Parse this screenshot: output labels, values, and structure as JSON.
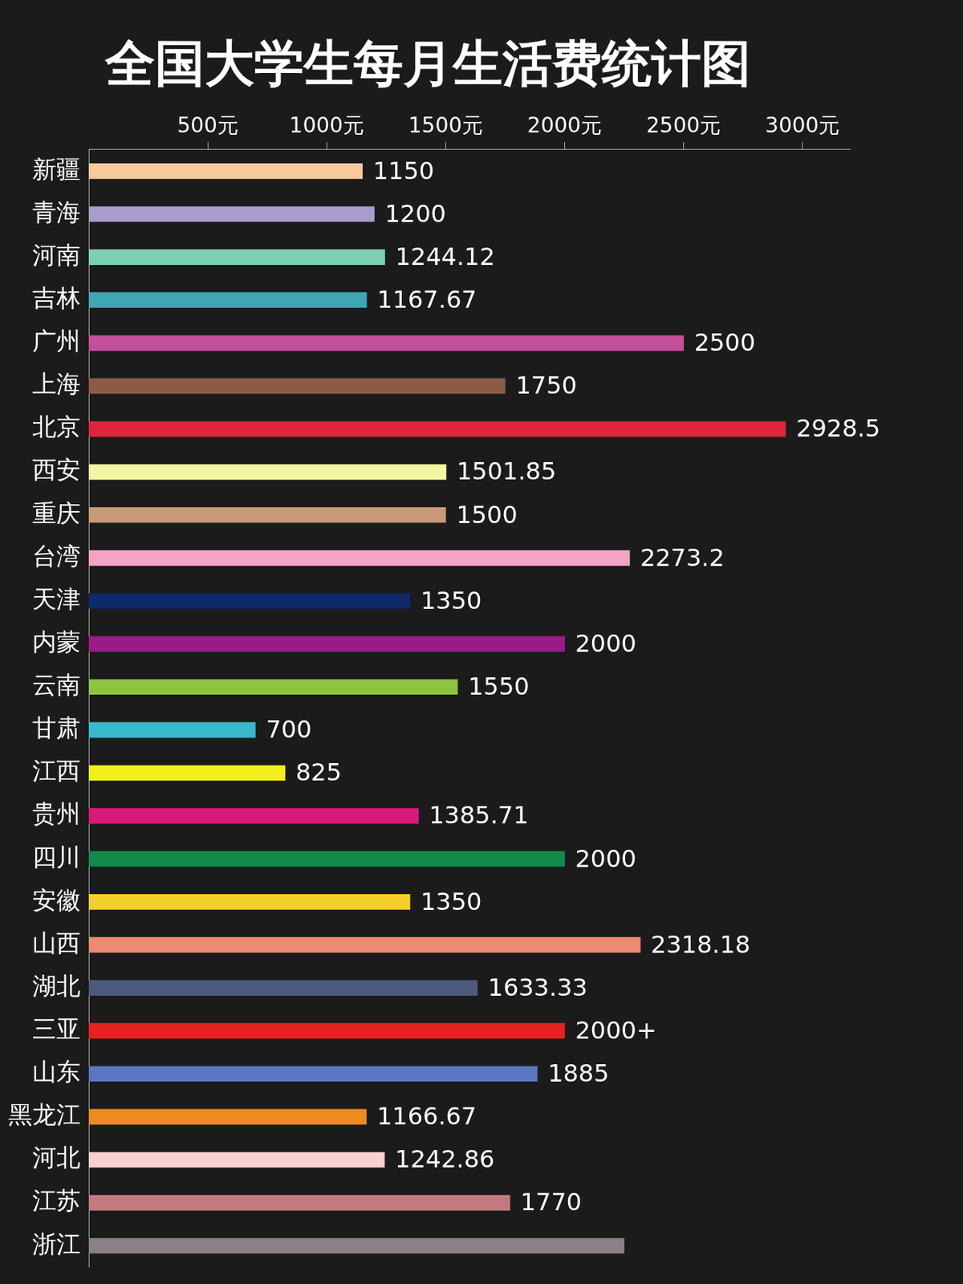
{
  "chart_data": {
    "type": "bar",
    "orientation": "horizontal",
    "title": "全国大学生每月生活费统计图",
    "categories": [
      "新疆",
      "青海",
      "河南",
      "吉林",
      "广州",
      "上海",
      "北京",
      "西安",
      "重庆",
      "台湾",
      "天津",
      "内蒙",
      "云南",
      "甘肃",
      "江西",
      "贵州",
      "四川",
      "安徽",
      "山西",
      "湖北",
      "三亚",
      "山东",
      "黑龙江",
      "河北",
      "江苏",
      "浙江"
    ],
    "values": [
      1150,
      1200,
      1244.12,
      1167.67,
      2500,
      1750,
      2928.5,
      1501.85,
      1500,
      2273.2,
      1350,
      2000,
      1550,
      700,
      825,
      1385.71,
      2000,
      1350,
      2318.18,
      1633.33,
      2000,
      1885,
      1166.67,
      1242.86,
      1770,
      2250
    ],
    "value_labels": [
      "1150",
      "1200",
      "1244.12",
      "1167.67",
      "2500",
      "1750",
      "2928.5",
      "1501.85",
      "1500",
      "2273.2",
      "1350",
      "2000",
      "1550",
      "700",
      "825",
      "1385.71",
      "2000",
      "1350",
      "2318.18",
      "1633.33",
      "2000+",
      "1885",
      "1166.67",
      "1242.86",
      "1770",
      null
    ],
    "colors": [
      "#f9c89b",
      "#a79ccb",
      "#7fd1b3",
      "#3fa6b5",
      "#c2509a",
      "#8c5a48",
      "#e0243f",
      "#f4f5a0",
      "#c99a7a",
      "#f5a3c4",
      "#0e2a6a",
      "#9c1a86",
      "#8cc43f",
      "#3ab8cc",
      "#f2ef1a",
      "#d81a78",
      "#118a4a",
      "#f2cf2a",
      "#ee8a74",
      "#4c5a7e",
      "#e8221e",
      "#5a76c0",
      "#ee8a22",
      "#fbd0d0",
      "#c27a80",
      "#8a8088"
    ],
    "xlim": [
      0,
      3200
    ],
    "xticks": [
      {
        "value": 500,
        "label": "500元"
      },
      {
        "value": 1000,
        "label": "1000元"
      },
      {
        "value": 1500,
        "label": "1500元"
      },
      {
        "value": 2000,
        "label": "2000元"
      },
      {
        "value": 2500,
        "label": "2500元"
      },
      {
        "value": 3000,
        "label": "3000元"
      }
    ],
    "grid": false,
    "data_labels": true
  }
}
